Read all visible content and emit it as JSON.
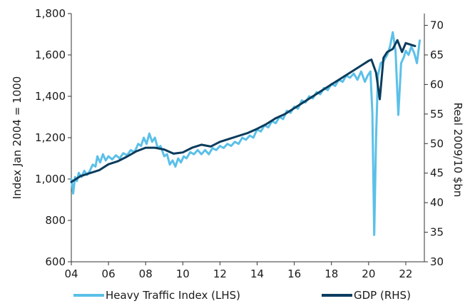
{
  "title_fragment": "",
  "chart_data": {
    "type": "line",
    "left_axis": {
      "label": "Index Jan 2004 = 1000",
      "ylim": [
        600,
        1800
      ],
      "ticks": [
        "600",
        "800",
        "1,000",
        "1,200",
        "1,400",
        "1,600",
        "1,800"
      ]
    },
    "right_axis": {
      "label": "Real 2009/10 $bn",
      "ylim": [
        30,
        72
      ],
      "ticks": [
        "30",
        "35",
        "40",
        "45",
        "50",
        "55",
        "60",
        "65",
        "70"
      ]
    },
    "x_axis": {
      "xlim": [
        2004,
        2023
      ],
      "ticks": [
        "04",
        "06",
        "08",
        "10",
        "12",
        "14",
        "16",
        "18",
        "20",
        "22"
      ]
    },
    "grid": false,
    "legend_position": "bottom",
    "series": [
      {
        "name": "Heavy Traffic Index (LHS)",
        "axis": "left",
        "color": "#5bc0e8",
        "points": [
          [
            2004.0,
            1000
          ],
          [
            2004.1,
            930
          ],
          [
            2004.2,
            1010
          ],
          [
            2004.3,
            990
          ],
          [
            2004.4,
            1030
          ],
          [
            2004.55,
            1010
          ],
          [
            2004.7,
            1040
          ],
          [
            2004.85,
            1020
          ],
          [
            2005.0,
            1040
          ],
          [
            2005.15,
            1070
          ],
          [
            2005.3,
            1060
          ],
          [
            2005.4,
            1110
          ],
          [
            2005.55,
            1080
          ],
          [
            2005.7,
            1120
          ],
          [
            2005.85,
            1090
          ],
          [
            2006.0,
            1110
          ],
          [
            2006.2,
            1095
          ],
          [
            2006.4,
            1115
          ],
          [
            2006.6,
            1100
          ],
          [
            2006.8,
            1125
          ],
          [
            2007.0,
            1115
          ],
          [
            2007.2,
            1140
          ],
          [
            2007.4,
            1130
          ],
          [
            2007.6,
            1170
          ],
          [
            2007.75,
            1160
          ],
          [
            2007.9,
            1200
          ],
          [
            2008.05,
            1170
          ],
          [
            2008.2,
            1220
          ],
          [
            2008.35,
            1180
          ],
          [
            2008.5,
            1200
          ],
          [
            2008.65,
            1150
          ],
          [
            2008.8,
            1160
          ],
          [
            2009.0,
            1110
          ],
          [
            2009.15,
            1120
          ],
          [
            2009.3,
            1070
          ],
          [
            2009.45,
            1090
          ],
          [
            2009.6,
            1060
          ],
          [
            2009.75,
            1100
          ],
          [
            2009.9,
            1080
          ],
          [
            2010.05,
            1110
          ],
          [
            2010.2,
            1100
          ],
          [
            2010.4,
            1130
          ],
          [
            2010.6,
            1120
          ],
          [
            2010.8,
            1140
          ],
          [
            2011.0,
            1120
          ],
          [
            2011.2,
            1140
          ],
          [
            2011.4,
            1120
          ],
          [
            2011.6,
            1150
          ],
          [
            2011.8,
            1140
          ],
          [
            2012.0,
            1160
          ],
          [
            2012.2,
            1150
          ],
          [
            2012.4,
            1170
          ],
          [
            2012.6,
            1160
          ],
          [
            2012.8,
            1180
          ],
          [
            2013.0,
            1170
          ],
          [
            2013.2,
            1200
          ],
          [
            2013.4,
            1190
          ],
          [
            2013.6,
            1210
          ],
          [
            2013.8,
            1200
          ],
          [
            2014.0,
            1240
          ],
          [
            2014.2,
            1230
          ],
          [
            2014.4,
            1260
          ],
          [
            2014.6,
            1250
          ],
          [
            2014.8,
            1280
          ],
          [
            2015.0,
            1270
          ],
          [
            2015.2,
            1300
          ],
          [
            2015.4,
            1290
          ],
          [
            2015.6,
            1330
          ],
          [
            2015.8,
            1320
          ],
          [
            2016.0,
            1350
          ],
          [
            2016.2,
            1340
          ],
          [
            2016.4,
            1380
          ],
          [
            2016.6,
            1370
          ],
          [
            2016.8,
            1400
          ],
          [
            2017.0,
            1390
          ],
          [
            2017.2,
            1420
          ],
          [
            2017.4,
            1410
          ],
          [
            2017.6,
            1440
          ],
          [
            2017.8,
            1430
          ],
          [
            2018.0,
            1460
          ],
          [
            2018.2,
            1450
          ],
          [
            2018.4,
            1480
          ],
          [
            2018.6,
            1470
          ],
          [
            2018.8,
            1500
          ],
          [
            2019.0,
            1490
          ],
          [
            2019.2,
            1510
          ],
          [
            2019.4,
            1480
          ],
          [
            2019.6,
            1520
          ],
          [
            2019.8,
            1470
          ],
          [
            2019.95,
            1500
          ],
          [
            2020.1,
            1520
          ],
          [
            2020.2,
            1320
          ],
          [
            2020.3,
            730
          ],
          [
            2020.4,
            1200
          ],
          [
            2020.5,
            1500
          ],
          [
            2020.65,
            1560
          ],
          [
            2020.8,
            1570
          ],
          [
            2021.0,
            1600
          ],
          [
            2021.15,
            1640
          ],
          [
            2021.3,
            1710
          ],
          [
            2021.45,
            1620
          ],
          [
            2021.6,
            1310
          ],
          [
            2021.75,
            1560
          ],
          [
            2021.9,
            1590
          ],
          [
            2022.0,
            1620
          ],
          [
            2022.15,
            1600
          ],
          [
            2022.3,
            1640
          ],
          [
            2022.45,
            1610
          ],
          [
            2022.6,
            1560
          ],
          [
            2022.75,
            1670
          ]
        ]
      },
      {
        "name": "GDP (RHS)",
        "axis": "right",
        "color": "#0b3c5d",
        "points": [
          [
            2004.0,
            43.5
          ],
          [
            2004.5,
            44.5
          ],
          [
            2005.0,
            45.0
          ],
          [
            2005.5,
            45.5
          ],
          [
            2006.0,
            46.5
          ],
          [
            2006.5,
            47.0
          ],
          [
            2007.0,
            47.8
          ],
          [
            2007.5,
            48.7
          ],
          [
            2008.0,
            49.3
          ],
          [
            2008.5,
            49.3
          ],
          [
            2009.0,
            49.0
          ],
          [
            2009.5,
            48.3
          ],
          [
            2010.0,
            48.5
          ],
          [
            2010.5,
            49.3
          ],
          [
            2011.0,
            49.8
          ],
          [
            2011.5,
            49.5
          ],
          [
            2012.0,
            50.3
          ],
          [
            2012.5,
            50.8
          ],
          [
            2013.0,
            51.3
          ],
          [
            2013.5,
            51.8
          ],
          [
            2014.0,
            52.5
          ],
          [
            2014.5,
            53.3
          ],
          [
            2015.0,
            54.3
          ],
          [
            2015.5,
            55.0
          ],
          [
            2016.0,
            56.0
          ],
          [
            2016.5,
            57.0
          ],
          [
            2017.0,
            58.0
          ],
          [
            2017.5,
            59.0
          ],
          [
            2018.0,
            60.0
          ],
          [
            2018.5,
            61.0
          ],
          [
            2019.0,
            62.0
          ],
          [
            2019.5,
            63.0
          ],
          [
            2020.0,
            64.0
          ],
          [
            2020.15,
            64.2
          ],
          [
            2020.4,
            62.0
          ],
          [
            2020.6,
            57.5
          ],
          [
            2020.8,
            64.5
          ],
          [
            2021.0,
            65.5
          ],
          [
            2021.3,
            66.0
          ],
          [
            2021.55,
            67.5
          ],
          [
            2021.8,
            65.5
          ],
          [
            2022.0,
            67.0
          ],
          [
            2022.5,
            66.5
          ]
        ]
      }
    ]
  }
}
